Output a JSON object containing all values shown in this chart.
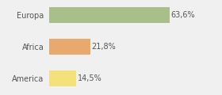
{
  "categories": [
    "America",
    "Africa",
    "Europa"
  ],
  "values": [
    14.5,
    21.8,
    63.6
  ],
  "labels": [
    "14,5%",
    "21,8%",
    "63,6%"
  ],
  "bar_colors": [
    "#f5e17a",
    "#e8a96e",
    "#a8bf8a"
  ],
  "background_color": "#f0f0f0",
  "xlim": [
    0,
    82
  ],
  "label_fontsize": 7.0,
  "tick_fontsize": 7.0,
  "bar_height": 0.5
}
